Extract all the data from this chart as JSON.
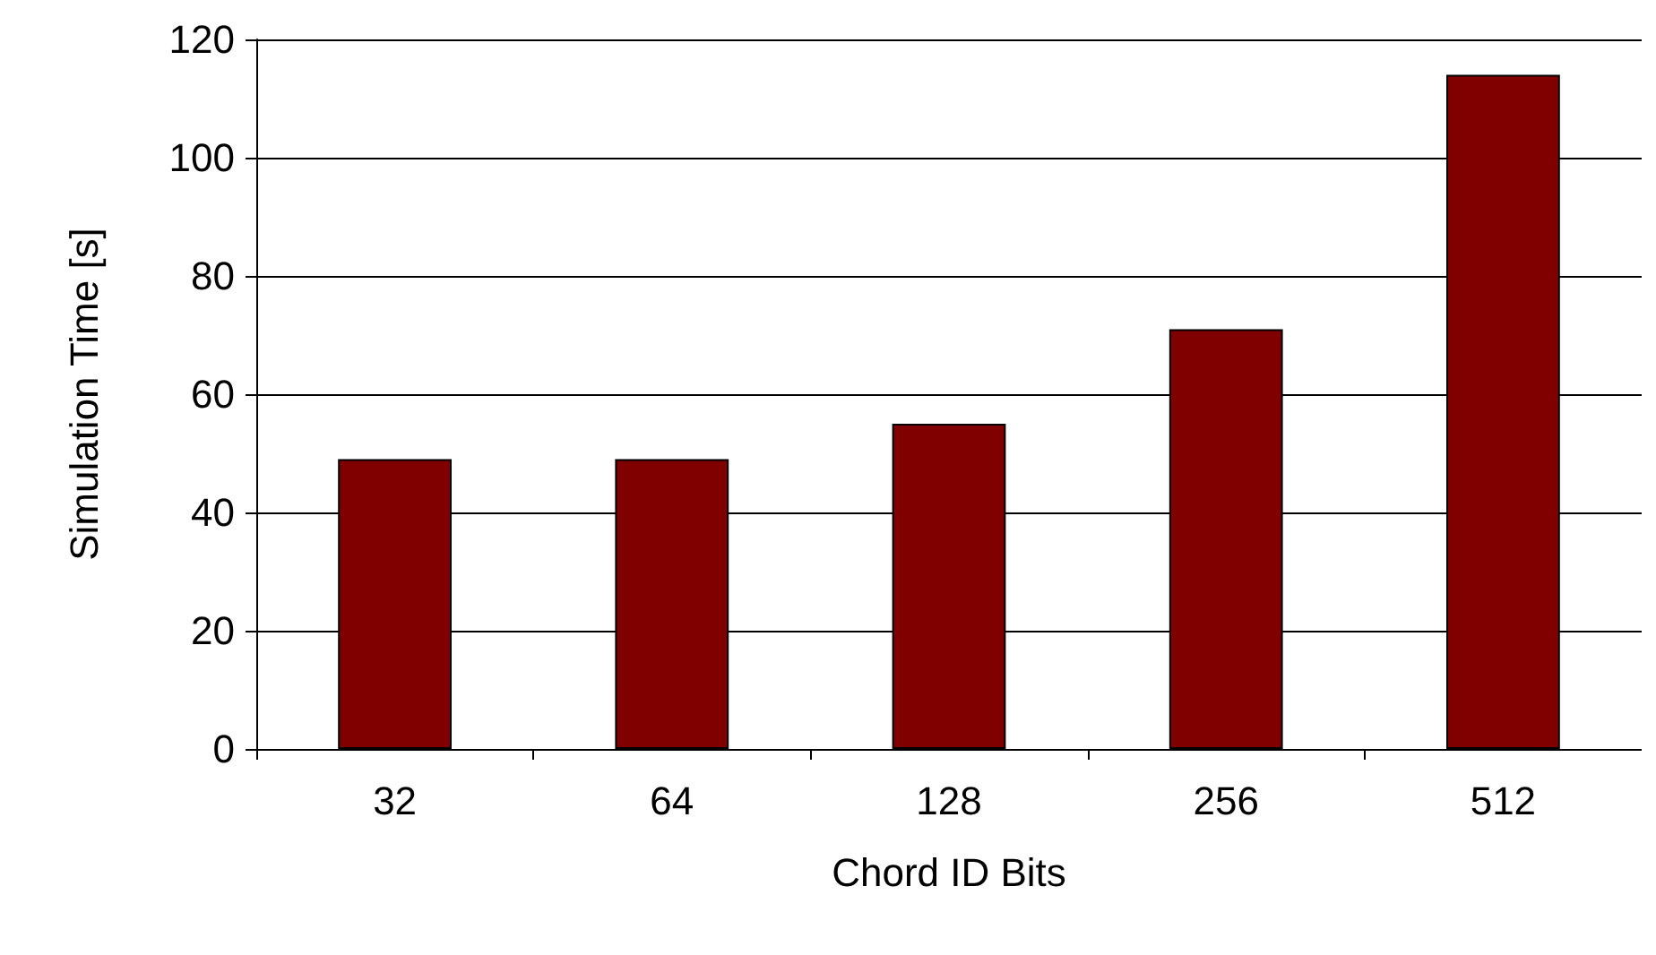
{
  "chart_data": {
    "type": "bar",
    "xlabel": "Chord ID Bits",
    "ylabel": "Simulation Time [s]",
    "categories": [
      "32",
      "64",
      "128",
      "256",
      "512"
    ],
    "values": [
      49,
      49,
      55,
      71,
      114
    ],
    "color": "#800000",
    "ylim": [
      0,
      120
    ],
    "yticks": [
      0,
      20,
      40,
      60,
      80,
      100,
      120
    ],
    "grid": "y"
  }
}
